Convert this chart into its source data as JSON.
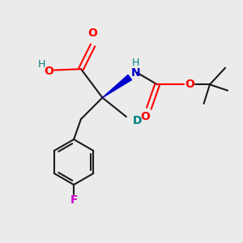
{
  "bg_color": "#ebebeb",
  "line_color": "#1a1a1a",
  "bond_width": 1.5,
  "atom_colors": {
    "O": "#ff0000",
    "N": "#0000cc",
    "F": "#cc00cc",
    "D": "#008080",
    "H_teal": "#008080",
    "C": "#1a1a1a"
  },
  "font_size": 10,
  "font_size_sm": 9
}
